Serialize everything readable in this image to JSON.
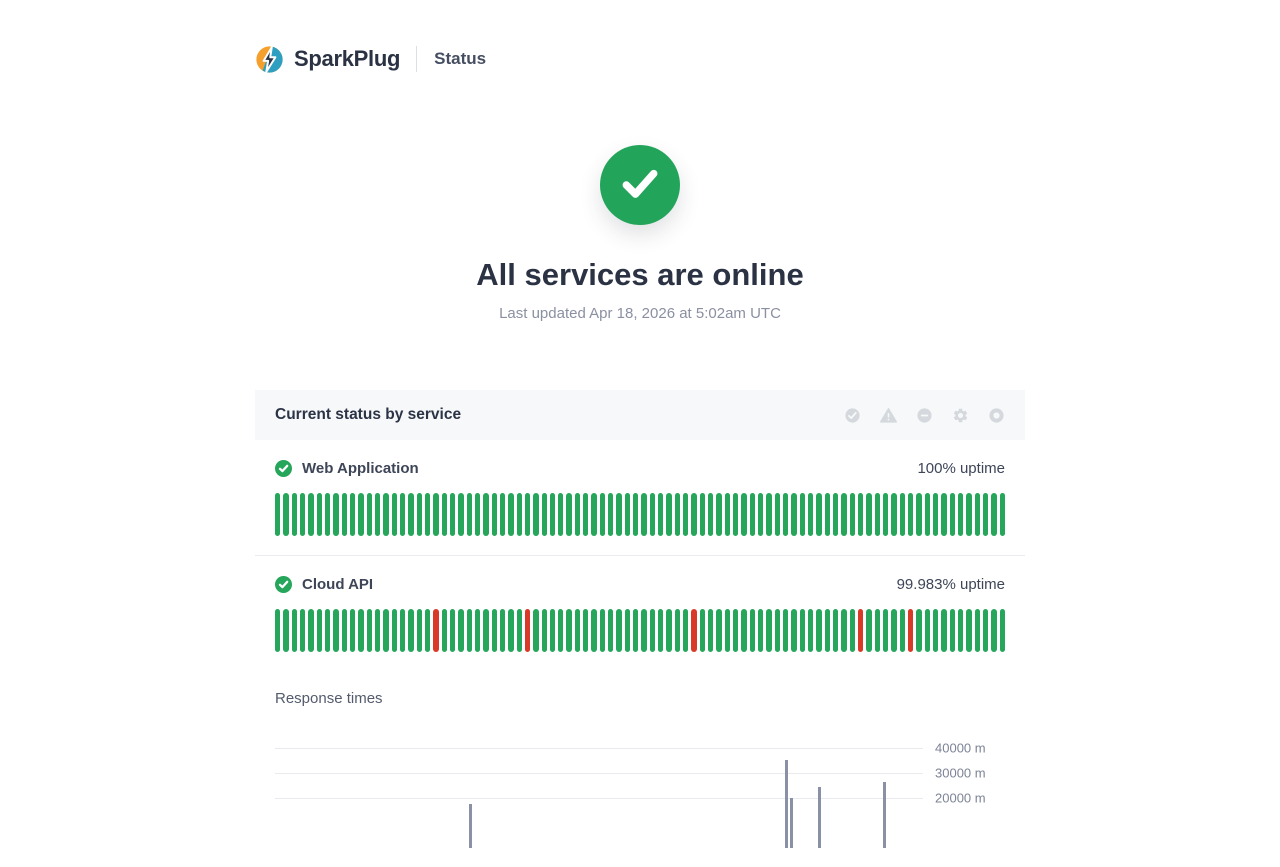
{
  "brand": {
    "name": "SparkPlug",
    "page_label": "Status",
    "logo_colors": {
      "orange": "#f5a02c",
      "teal": "#2e9fc0",
      "bolt": "#2b3346"
    }
  },
  "hero": {
    "title": "All services are online",
    "last_updated": "Last updated Apr 18, 2026 at 5:02am UTC",
    "status": "operational",
    "status_color": "#23a45b"
  },
  "status_card": {
    "header": "Current status by service",
    "legend_icons": [
      "check-circle",
      "warning-triangle",
      "minus-circle",
      "gear",
      "ring"
    ],
    "colors": {
      "up": "#26a65b",
      "down": "#d83a27",
      "icon_gray": "#d5d9de"
    },
    "services": [
      {
        "name": "Web Application",
        "status": "operational",
        "uptime": "100% uptime",
        "history": {
          "total_bars": 88,
          "down_indices": []
        }
      },
      {
        "name": "Cloud API",
        "status": "operational",
        "uptime": "99.983% uptime",
        "history": {
          "total_bars": 88,
          "down_indices": [
            19,
            30,
            50,
            70,
            76
          ]
        }
      }
    ]
  },
  "chart_data": {
    "type": "bar",
    "title": "Response times",
    "xlabel": "",
    "ylabel": "",
    "unit": "m",
    "ylim": [
      0,
      50000
    ],
    "grid": true,
    "legend_position": "none",
    "yticks": [
      {
        "label": "40000 m",
        "value": 40000
      },
      {
        "label": "30000 m",
        "value": 30000
      },
      {
        "label": "20000 m",
        "value": 20000
      }
    ],
    "spike_color": "#8a90a5",
    "points": [
      {
        "x_fraction": 0.3,
        "value": 17600
      },
      {
        "x_fraction": 0.787,
        "value": 35200
      },
      {
        "x_fraction": 0.794,
        "value": 20000
      },
      {
        "x_fraction": 0.838,
        "value": 24400
      },
      {
        "x_fraction": 0.938,
        "value": 26400
      }
    ]
  }
}
